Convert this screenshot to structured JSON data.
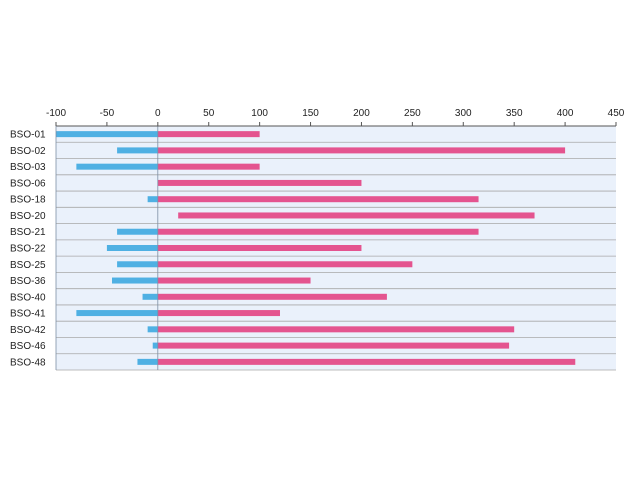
{
  "chart_data": {
    "type": "bar",
    "orientation": "horizontal",
    "title": "",
    "xlabel": "",
    "ylabel": "",
    "xlim": [
      -100,
      450
    ],
    "x_ticks": [
      -100,
      -50,
      0,
      50,
      100,
      150,
      200,
      250,
      300,
      350,
      400,
      450
    ],
    "x_axis_position": "top",
    "grid": "horizontal row separators",
    "legend": "none",
    "categories": [
      "BSO-01",
      "BSO-02",
      "BSO-03",
      "BSO-06",
      "BSO-18",
      "BSO-20",
      "BSO-21",
      "BSO-22",
      "BSO-25",
      "BSO-36",
      "BSO-40",
      "BSO-41",
      "BSO-42",
      "BSO-46",
      "BSO-48"
    ],
    "series": [
      {
        "color": "#4FB0E3",
        "start": [
          -100,
          -40,
          -80,
          0,
          -10,
          0,
          -40,
          -50,
          -40,
          -45,
          -15,
          -80,
          -10,
          -5,
          -20
        ],
        "end": [
          0,
          0,
          0,
          0,
          0,
          0,
          0,
          0,
          0,
          0,
          0,
          0,
          0,
          0,
          0
        ]
      },
      {
        "color": "#E4548F",
        "start": [
          0,
          0,
          0,
          0,
          0,
          20,
          0,
          0,
          0,
          0,
          0,
          0,
          0,
          0,
          0
        ],
        "end": [
          100,
          400,
          100,
          200,
          315,
          370,
          315,
          200,
          250,
          150,
          225,
          120,
          350,
          345,
          410
        ]
      }
    ],
    "plot_background": "#EAF1FB",
    "gridline_color": "#A8A8A8"
  }
}
